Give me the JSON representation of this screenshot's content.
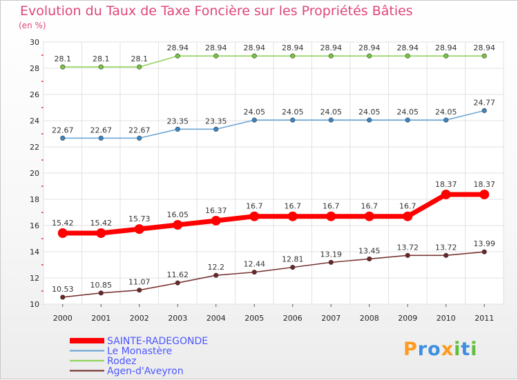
{
  "title": "Evolution du Taux de Taxe Foncière sur les Propriétés Bâties",
  "subtitle": "(en %)",
  "logo": {
    "text": "Proxiti",
    "letters": [
      "P",
      "r",
      "o",
      "x",
      "i",
      "t",
      "i"
    ],
    "colors": [
      "#ff9a1e",
      "#3d8fe0",
      "#3d8fe0",
      "#ff9a1e",
      "#5fbf3c",
      "#3d8fe0",
      "#5fbf3c"
    ]
  },
  "chart_data": {
    "type": "line",
    "title": "Evolution du Taux de Taxe Foncière sur les Propriétés Bâties",
    "ylabel": "(en %)",
    "xlabel": "",
    "categories": [
      "2000",
      "2001",
      "2002",
      "2003",
      "2004",
      "2005",
      "2006",
      "2007",
      "2008",
      "2009",
      "2010",
      "2011"
    ],
    "ylim": [
      10,
      30
    ],
    "yticks": [
      10,
      12,
      14,
      16,
      18,
      20,
      22,
      24,
      26,
      28,
      30
    ],
    "grid": true,
    "legend_position": "bottom-left",
    "series": [
      {
        "name": "Rodez",
        "color": "#8fd35a",
        "marker": "#78c240",
        "values": [
          28.1,
          28.1,
          28.1,
          28.94,
          28.94,
          28.94,
          28.94,
          28.94,
          28.94,
          28.94,
          28.94,
          28.94
        ],
        "labels": [
          "28.1",
          "28.1",
          "28.1",
          "28.94",
          "28.94",
          "28.94",
          "28.94",
          "28.94",
          "28.94",
          "28.94",
          "28.94",
          "28.94"
        ]
      },
      {
        "name": "Le Monastère",
        "color": "#6fa7d6",
        "marker": "#3a84c2",
        "values": [
          22.67,
          22.67,
          22.67,
          23.35,
          23.35,
          24.05,
          24.05,
          24.05,
          24.05,
          24.05,
          24.05,
          24.77
        ],
        "labels": [
          "22.67",
          "22.67",
          "22.67",
          "23.35",
          "23.35",
          "24.05",
          "24.05",
          "24.05",
          "24.05",
          "24.05",
          "24.05",
          "24.77"
        ]
      },
      {
        "name": "SAINTE-RADEGONDE",
        "color": "#ff0000",
        "marker": "#ff0000",
        "thick": true,
        "values": [
          15.42,
          15.42,
          15.73,
          16.05,
          16.37,
          16.7,
          16.7,
          16.7,
          16.7,
          16.7,
          18.37,
          18.37
        ],
        "labels": [
          "15.42",
          "15.42",
          "15.73",
          "16.05",
          "16.37",
          "16.7",
          "16.7",
          "16.7",
          "16.7",
          "16.7",
          "18.37",
          "18.37"
        ]
      },
      {
        "name": "Agen-d'Aveyron",
        "color": "#7a3535",
        "marker": "#6b2525",
        "values": [
          10.53,
          10.85,
          11.07,
          11.62,
          12.2,
          12.44,
          12.81,
          13.19,
          13.45,
          13.72,
          13.72,
          13.99
        ],
        "labels": [
          "10.53",
          "10.85",
          "11.07",
          "11.62",
          "12.2",
          "12.44",
          "12.81",
          "13.19",
          "13.45",
          "13.72",
          "13.72",
          "13.99"
        ]
      }
    ],
    "legend_order": [
      "SAINTE-RADEGONDE",
      "Le Monastère",
      "Rodez",
      "Agen-d'Aveyron"
    ]
  }
}
